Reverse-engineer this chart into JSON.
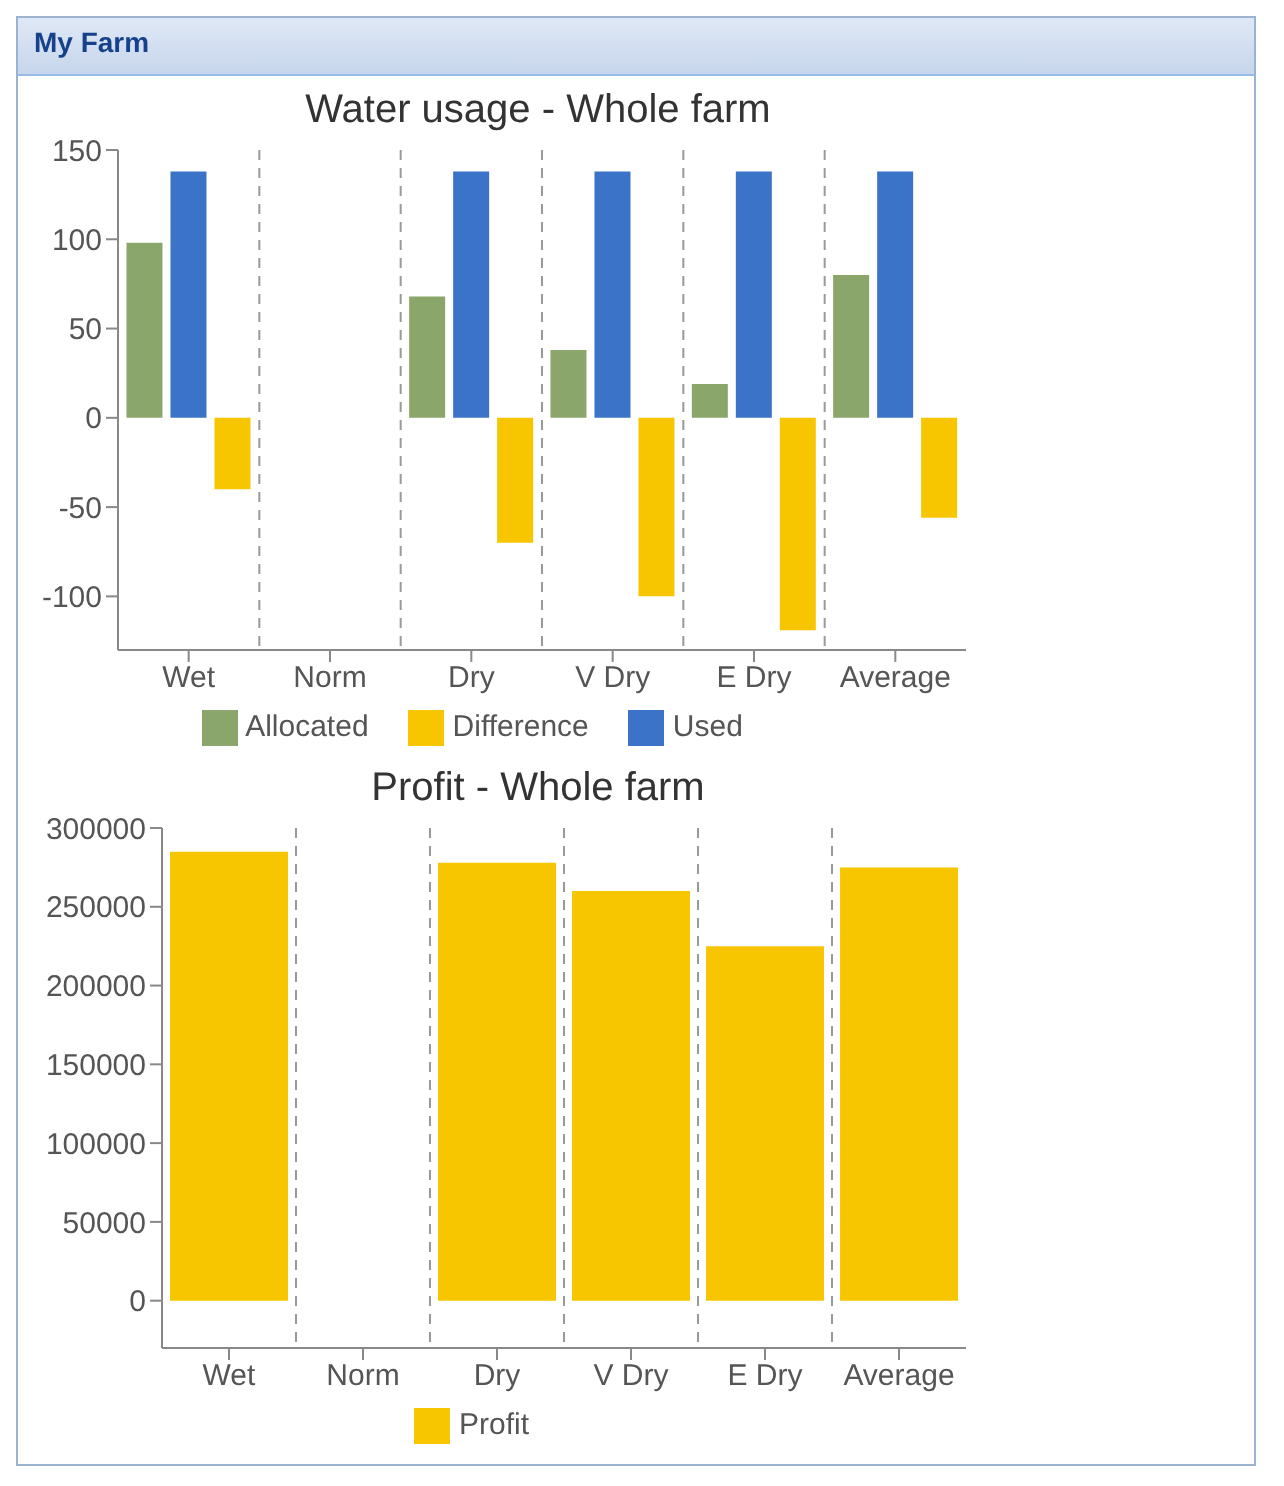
{
  "chart_data": [
    {
      "type": "bar",
      "title": "Water usage - Whole farm",
      "annotations": [
        "My Farm"
      ],
      "categories": [
        "Wet",
        "Norm",
        "Dry",
        "V Dry",
        "E Dry",
        "Average"
      ],
      "series": [
        {
          "name": "Allocated",
          "color": "#8aa66a",
          "values": [
            98,
            null,
            68,
            38,
            19,
            80
          ]
        },
        {
          "name": "Used",
          "color": "#3a73c8",
          "values": [
            138,
            null,
            138,
            138,
            138,
            138
          ]
        },
        {
          "name": "Difference",
          "color": "#f7c600",
          "values": [
            -40,
            null,
            -70,
            -100,
            -119,
            -56
          ]
        }
      ],
      "ylim": [
        -130,
        150
      ],
      "yticks": [
        -100,
        -50,
        0,
        50,
        100,
        150
      ],
      "grid": "x",
      "legend": "bottom"
    },
    {
      "type": "bar",
      "title": "Profit - Whole farm",
      "categories": [
        "Wet",
        "Norm",
        "Dry",
        "V Dry",
        "E Dry",
        "Average"
      ],
      "series": [
        {
          "name": "Profit",
          "color": "#f7c600",
          "values": [
            285000,
            null,
            278000,
            260000,
            225000,
            275000
          ]
        }
      ],
      "ylim": [
        -30000,
        300000
      ],
      "yticks": [
        0,
        50000,
        100000,
        150000,
        200000,
        250000,
        300000
      ],
      "grid": "x",
      "legend": "bottom"
    }
  ]
}
